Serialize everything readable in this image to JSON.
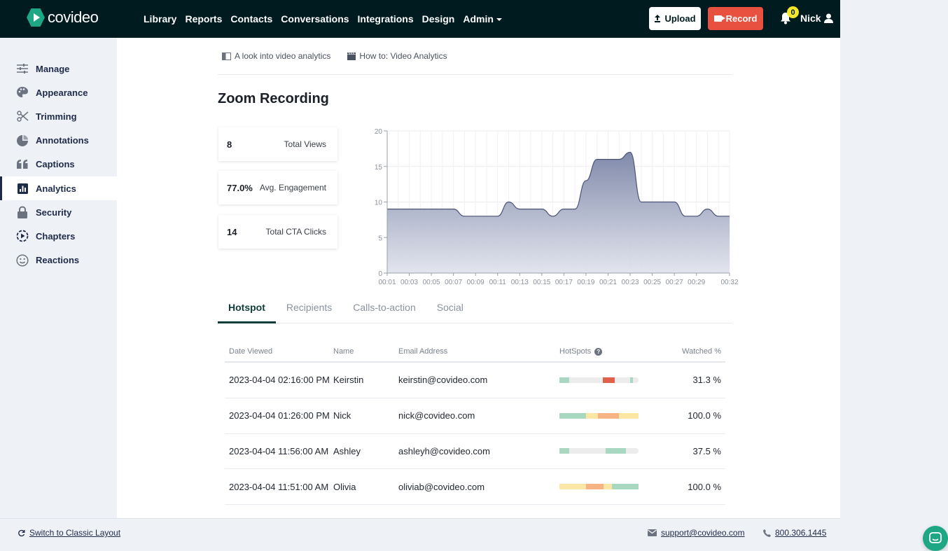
{
  "app": {
    "brand": "covideo"
  },
  "nav": {
    "items": [
      "Library",
      "Reports",
      "Contacts",
      "Conversations",
      "Integrations",
      "Design",
      "Admin"
    ]
  },
  "header": {
    "upload_label": "Upload",
    "record_label": "Record",
    "notification_count": "0",
    "user_name": "Nick"
  },
  "sidebar": {
    "items": [
      {
        "label": "Manage",
        "icon": "sliders-icon"
      },
      {
        "label": "Appearance",
        "icon": "palette-icon"
      },
      {
        "label": "Trimming",
        "icon": "scissors-icon"
      },
      {
        "label": "Annotations",
        "icon": "annotation-icon"
      },
      {
        "label": "Captions",
        "icon": "quote-icon"
      },
      {
        "label": "Analytics",
        "icon": "bar-chart-icon",
        "active": true
      },
      {
        "label": "Security",
        "icon": "lock-icon"
      },
      {
        "label": "Chapters",
        "icon": "chapters-icon"
      },
      {
        "label": "Reactions",
        "icon": "smile-icon"
      }
    ]
  },
  "help_links": {
    "first": "A look into video analytics",
    "second": "How to: Video Analytics"
  },
  "page": {
    "title": "Zoom Recording"
  },
  "stats": [
    {
      "value": "8",
      "label": "Total Views"
    },
    {
      "value": "77.0%",
      "label": "Avg. Engagement"
    },
    {
      "value": "14",
      "label": "Total CTA Clicks"
    }
  ],
  "chart_data": {
    "type": "area",
    "title": "",
    "xlabel": "",
    "ylabel": "",
    "ylim": [
      0,
      20
    ],
    "yticks": [
      0,
      5,
      10,
      15,
      20
    ],
    "xticks": [
      "00:01",
      "00:03",
      "00:05",
      "00:07",
      "00:09",
      "00:11",
      "00:13",
      "00:15",
      "00:17",
      "00:19",
      "00:21",
      "00:23",
      "00:25",
      "00:27",
      "00:29",
      "00:32"
    ],
    "x": [
      1,
      2,
      3,
      4,
      5,
      6,
      7,
      8,
      9,
      10,
      11,
      12,
      13,
      14,
      15,
      16,
      17,
      18,
      19,
      20,
      21,
      22,
      23,
      24,
      25,
      26,
      27,
      28,
      29,
      30,
      31,
      32
    ],
    "values": [
      9,
      9,
      9,
      9,
      9,
      9,
      9,
      8,
      8,
      8,
      8,
      10,
      9,
      9,
      9,
      8,
      9,
      9,
      13,
      16,
      16,
      16,
      17,
      10,
      10,
      10,
      10,
      8,
      8,
      9,
      8,
      8
    ],
    "grid": true,
    "fill_color": "#8a94b2"
  },
  "tabs": [
    "Hotspot",
    "Recipients",
    "Calls-to-action",
    "Social"
  ],
  "table": {
    "headers": {
      "date": "Date Viewed",
      "name": "Name",
      "email": "Email Address",
      "hotspots": "HotSpots",
      "watched": "Watched %"
    },
    "rows": [
      {
        "date": "2023-04-04 02:16:00 PM",
        "name": "Keirstin",
        "email": "keirstin@covideo.com",
        "watched": "31.3 %",
        "hotspot": [
          {
            "start": 0,
            "end": 12,
            "color": "#a8d8bf"
          },
          {
            "start": 55,
            "end": 70,
            "color": "#e0604a"
          },
          {
            "start": 89,
            "end": 93,
            "color": "#a8d8bf"
          }
        ]
      },
      {
        "date": "2023-04-04 01:26:00 PM",
        "name": "Nick",
        "email": "nick@covideo.com",
        "watched": "100.0 %",
        "hotspot": [
          {
            "start": 0,
            "end": 34,
            "color": "#a8d8bf"
          },
          {
            "start": 34,
            "end": 49,
            "color": "#fbe6a3"
          },
          {
            "start": 49,
            "end": 75,
            "color": "#f6b383"
          },
          {
            "start": 75,
            "end": 100,
            "color": "#fbe6a3"
          }
        ]
      },
      {
        "date": "2023-04-04 11:56:00 AM",
        "name": "Ashley",
        "email": "ashleyh@covideo.com",
        "watched": "37.5 %",
        "hotspot": [
          {
            "start": 0,
            "end": 12,
            "color": "#a8d8bf"
          },
          {
            "start": 58,
            "end": 84,
            "color": "#a8d8bf"
          }
        ]
      },
      {
        "date": "2023-04-04 11:51:00 AM",
        "name": "Olivia",
        "email": "oliviab@covideo.com",
        "watched": "100.0 %",
        "hotspot": [
          {
            "start": 0,
            "end": 34,
            "color": "#fbe6a3"
          },
          {
            "start": 34,
            "end": 56,
            "color": "#f6b383"
          },
          {
            "start": 56,
            "end": 66,
            "color": "#fbe6a3"
          },
          {
            "start": 66,
            "end": 100,
            "color": "#a8d8bf"
          }
        ]
      }
    ]
  },
  "footer": {
    "classic_layout": "Switch to Classic Layout",
    "support_email": "support@covideo.com",
    "phone": "800.306.1445"
  }
}
